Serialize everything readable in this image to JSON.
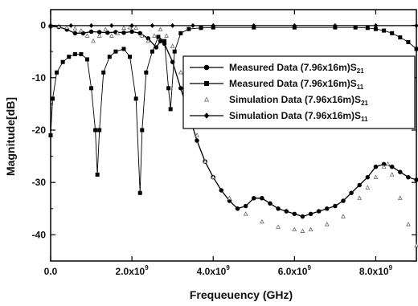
{
  "chart_data": {
    "type": "line",
    "xlabel": "Frequeuency (GHz)",
    "ylabel": "Magnitude[dB]",
    "xlim": [
      0,
      9000000000
    ],
    "ylim": [
      -45,
      3
    ],
    "x_ticks": [
      {
        "value": 0,
        "label": "0.0"
      },
      {
        "value": 2000000000,
        "label": "2.0x10",
        "exp": "9"
      },
      {
        "value": 4000000000,
        "label": "4.0x10",
        "exp": "9"
      },
      {
        "value": 6000000000,
        "label": "6.0x10",
        "exp": "9"
      },
      {
        "value": 8000000000,
        "label": "8.0x10",
        "exp": "9"
      }
    ],
    "y_ticks": [
      {
        "value": 0,
        "label": "0"
      },
      {
        "value": -10,
        "label": "-10"
      },
      {
        "value": -20,
        "label": "-20"
      },
      {
        "value": -30,
        "label": "-30"
      },
      {
        "value": -40,
        "label": "-40"
      }
    ],
    "legend_position": "right",
    "series": [
      {
        "name": "Measured Data (7.96x16m)S",
        "sub": "21",
        "marker": "circle",
        "color": "#000000",
        "x": [
          0,
          200000000,
          400000000,
          600000000,
          800000000,
          1000000000,
          1200000000,
          1400000000,
          1600000000,
          1800000000,
          2000000000,
          2200000000,
          2400000000,
          2600000000,
          2700000000,
          2800000000,
          3000000000,
          3200000000,
          3400000000,
          3600000000,
          3800000000,
          4000000000,
          4200000000,
          4400000000,
          4600000000,
          4800000000,
          5000000000,
          5200000000,
          5400000000,
          5600000000,
          5800000000,
          6000000000,
          6200000000,
          6400000000,
          6600000000,
          6800000000,
          7000000000,
          7200000000,
          7400000000,
          7600000000,
          7800000000,
          8000000000,
          8200000000,
          8400000000,
          8600000000,
          8800000000,
          9000000000
        ],
        "y": [
          -0.2,
          -0.3,
          -0.8,
          -1.5,
          -1.5,
          -1.2,
          -1.3,
          -1.4,
          -1.3,
          -1.4,
          -1.2,
          -1.5,
          -2.5,
          -4.2,
          -3.0,
          -3.5,
          -7.0,
          -12.0,
          -17.0,
          -22.0,
          -26.0,
          -29.0,
          -31.5,
          -33.5,
          -35.0,
          -34.5,
          -33.0,
          -33.0,
          -34.0,
          -35.0,
          -35.5,
          -36.0,
          -36.5,
          -36.0,
          -35.5,
          -35.0,
          -34.5,
          -33.5,
          -32.0,
          -30.5,
          -29.0,
          -27.0,
          -26.5,
          -27.0,
          -28.0,
          -29.0,
          -29.5
        ]
      },
      {
        "name": "Measured Data (7.96x16m)S",
        "sub": "11",
        "marker": "square",
        "color": "#000000",
        "x": [
          0,
          50000000,
          150000000,
          300000000,
          450000000,
          600000000,
          750000000,
          900000000,
          1000000000,
          1100000000,
          1150000000,
          1200000000,
          1300000000,
          1450000000,
          1600000000,
          1800000000,
          1950000000,
          2100000000,
          2200000000,
          2250000000,
          2350000000,
          2500000000,
          2650000000,
          2800000000,
          2900000000,
          2950000000,
          3050000000,
          3200000000,
          3400000000,
          3700000000,
          4000000000,
          5000000000,
          6000000000,
          7000000000,
          7500000000,
          7800000000,
          8000000000,
          8200000000,
          8400000000,
          8600000000,
          8800000000,
          9000000000
        ],
        "y": [
          -21,
          -14,
          -9,
          -7,
          -6,
          -5.5,
          -5.5,
          -6.5,
          -12,
          -20,
          -28.5,
          -20,
          -9,
          -6,
          -5,
          -4.5,
          -6,
          -14,
          -32,
          -20,
          -9,
          -5,
          -2.2,
          -3,
          -12,
          -16,
          -5,
          -1.5,
          -0.7,
          -0.5,
          -0.4,
          -0.4,
          -0.4,
          -0.4,
          -0.4,
          -0.5,
          -0.7,
          -1.0,
          -1.5,
          -2.3,
          -3.2,
          -4.5
        ]
      },
      {
        "name": "Simulation Data (7.96x16m)S",
        "sub": "21",
        "marker": "triangle",
        "color": "#000000",
        "x": [
          0,
          200000000,
          400000000,
          600000000,
          750000000,
          900000000,
          1050000000,
          1200000000,
          1350000000,
          1500000000,
          1650000000,
          1800000000,
          1950000000,
          2100000000,
          2250000000,
          2400000000,
          2550000000,
          2700000000,
          2850000000,
          3000000000,
          3200000000,
          3400000000,
          3600000000,
          3800000000,
          4000000000,
          4400000000,
          4800000000,
          5200000000,
          5600000000,
          6000000000,
          6200000000,
          6400000000,
          6800000000,
          7200000000,
          7600000000,
          7800000000,
          8000000000,
          8200000000,
          8300000000,
          8400000000,
          8600000000,
          8800000000,
          9000000000
        ],
        "y": [
          -0.1,
          -0.2,
          -0.4,
          -0.6,
          -1.0,
          -2.0,
          -3.0,
          -2.0,
          -0.8,
          -2.0,
          -1.5,
          -0.5,
          -0.4,
          -0.5,
          -2.0,
          -3.0,
          -2.0,
          -0.8,
          -2.0,
          -4.0,
          -9.0,
          -15.0,
          -21.0,
          -26.0,
          -29.0,
          -33.0,
          -36.0,
          -37.5,
          -38.5,
          -39.0,
          -39.3,
          -39.0,
          -38.0,
          -36.5,
          -33.0,
          -31.0,
          -29.0,
          -27.0,
          -26.5,
          -28.5,
          -33.0,
          -38.0,
          -42.0
        ]
      },
      {
        "name": "Simulation Data (7.96x16m)S",
        "sub": "11",
        "marker": "diamond",
        "color": "#000000",
        "x": [
          0,
          500000000,
          1000000000,
          1500000000,
          2000000000,
          2500000000,
          3000000000,
          3500000000,
          4000000000,
          5000000000,
          6000000000,
          7000000000,
          8000000000,
          9000000000
        ],
        "y": [
          -0.05,
          -0.05,
          -0.05,
          -0.05,
          -0.05,
          -0.05,
          -0.05,
          -0.05,
          -0.05,
          -0.05,
          -0.05,
          -0.05,
          -0.05,
          -0.05
        ]
      }
    ]
  }
}
